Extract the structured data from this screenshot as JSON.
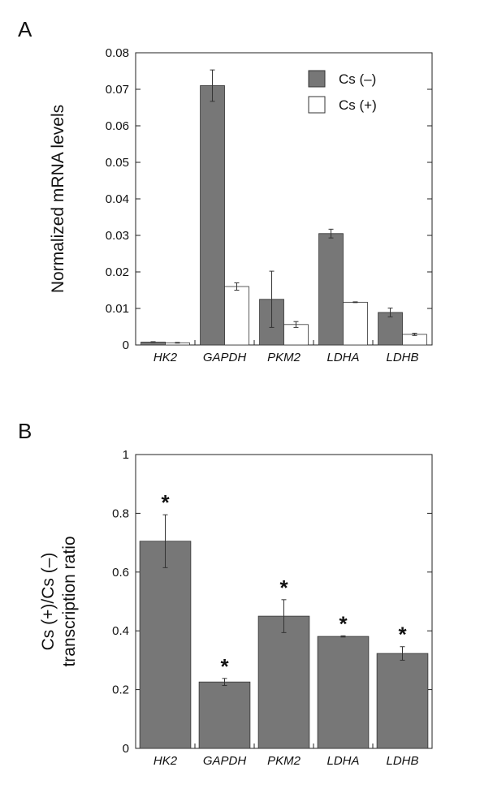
{
  "panels": {
    "a": {
      "label": "A"
    },
    "b": {
      "label": "B"
    }
  },
  "colors": {
    "filled": "#777777",
    "empty": "#ffffff",
    "edge": "#333333"
  },
  "chart_data": [
    {
      "type": "bar",
      "panel": "A",
      "ylabel": "Normalized mRNA levels",
      "categories": [
        "HK2",
        "GAPDH",
        "PKM2",
        "LDHA",
        "LDHB"
      ],
      "ylim": [
        0,
        0.08
      ],
      "yticks": [
        0,
        0.01,
        0.02,
        0.03,
        0.04,
        0.05,
        0.06,
        0.07,
        0.08
      ],
      "ytick_labels": [
        "0",
        "0.01",
        "0.02",
        "0.03",
        "0.04",
        "0.05",
        "0.06",
        "0.07",
        "0.08"
      ],
      "legend": "top-right",
      "series": [
        {
          "name": "Cs (–)",
          "color": "#777777",
          "values": [
            0.0008,
            0.071,
            0.0125,
            0.0305,
            0.0089
          ],
          "errors": [
            0.0001,
            0.0043,
            0.0077,
            0.0012,
            0.0012
          ]
        },
        {
          "name": "Cs (+)",
          "color": "#ffffff",
          "values": [
            0.0006,
            0.016,
            0.0056,
            0.0117,
            0.0029
          ],
          "errors": [
            0.0001,
            0.001,
            0.0008,
            0.0001,
            0.0003
          ]
        }
      ]
    },
    {
      "type": "bar",
      "panel": "B",
      "ylabel_lines": [
        "Cs (+)/Cs (–)",
        "transcription ratio"
      ],
      "categories": [
        "HK2",
        "GAPDH",
        "PKM2",
        "LDHA",
        "LDHB"
      ],
      "ylim": [
        0,
        1
      ],
      "yticks": [
        0,
        0.2,
        0.4,
        0.6,
        0.8,
        1
      ],
      "ytick_labels": [
        "0",
        "0.2",
        "0.4",
        "0.6",
        "0.8",
        "1"
      ],
      "series": [
        {
          "name": "",
          "color": "#777777",
          "values": [
            0.705,
            0.226,
            0.45,
            0.381,
            0.323
          ],
          "errors": [
            0.09,
            0.012,
            0.056,
            0.002,
            0.023
          ]
        }
      ],
      "annotations": [
        "*",
        "*",
        "*",
        "*",
        "*"
      ]
    }
  ]
}
